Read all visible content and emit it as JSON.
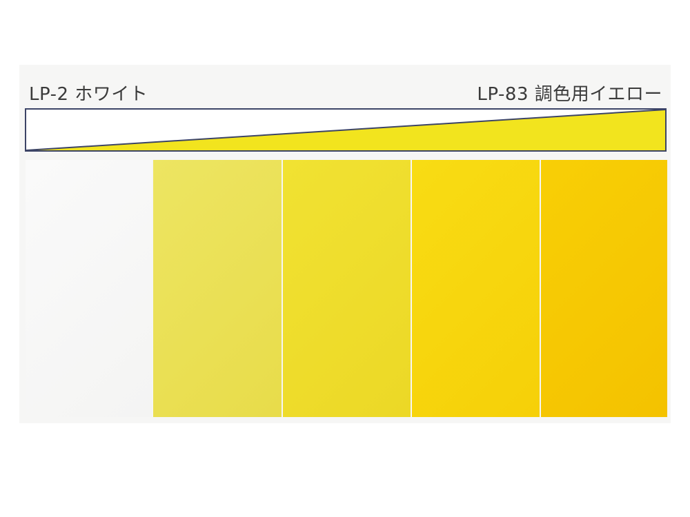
{
  "labels": {
    "left": "LP-2 ホワイト",
    "right": "LP-83 調色用イエロー"
  },
  "gradient_bar": {
    "start_color": "#ffffff",
    "end_color": "#f2e41e",
    "outline_color": "#3c4466"
  },
  "swatches": [
    {
      "color": "#fafafa",
      "color2": "#f4f4f3"
    },
    {
      "color": "#ede562",
      "color2": "#e8dc4a"
    },
    {
      "color": "#f1e232",
      "color2": "#ecd826"
    },
    {
      "color": "#f8dc14",
      "color2": "#f6d008"
    },
    {
      "color": "#f8cf06",
      "color2": "#f4c200"
    }
  ]
}
